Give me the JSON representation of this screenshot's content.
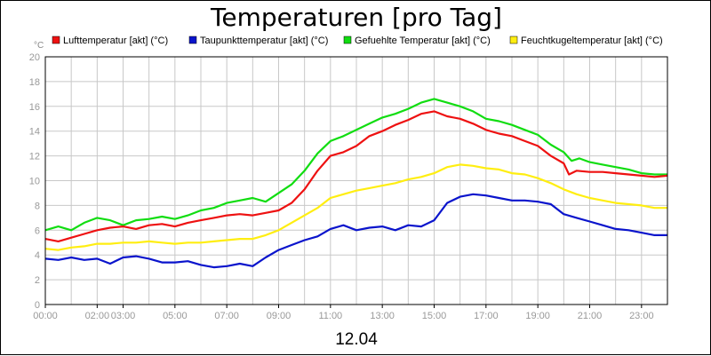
{
  "chart_data": {
    "type": "line",
    "title": "Temperaturen [pro Tag]",
    "xlabel": "12.04",
    "ylabel": "°C",
    "ylim": [
      0,
      20
    ],
    "xlim": [
      0,
      24
    ],
    "yticks": [
      0,
      2,
      4,
      6,
      8,
      10,
      12,
      14,
      16,
      18,
      20
    ],
    "xticks": [
      {
        "x": 0,
        "label": "00:00"
      },
      {
        "x": 2,
        "label": "02:00"
      },
      {
        "x": 3,
        "label": "03:00"
      },
      {
        "x": 5,
        "label": "05:00"
      },
      {
        "x": 7,
        "label": "07:00"
      },
      {
        "x": 9,
        "label": "09:00"
      },
      {
        "x": 11,
        "label": "11:00"
      },
      {
        "x": 13,
        "label": "13:00"
      },
      {
        "x": 15,
        "label": "15:00"
      },
      {
        "x": 17,
        "label": "17:00"
      },
      {
        "x": 19,
        "label": "19:00"
      },
      {
        "x": 21,
        "label": "21:00"
      },
      {
        "x": 23,
        "label": "23:00"
      }
    ],
    "grid": true,
    "legend_position": "top",
    "series": [
      {
        "name": "Lufttemperatur [akt] (°C)",
        "color": "#ee1111",
        "points": [
          [
            0,
            5.3
          ],
          [
            0.5,
            5.1
          ],
          [
            1,
            5.4
          ],
          [
            1.5,
            5.7
          ],
          [
            2,
            6.0
          ],
          [
            2.5,
            6.2
          ],
          [
            3,
            6.3
          ],
          [
            3.5,
            6.1
          ],
          [
            4,
            6.4
          ],
          [
            4.5,
            6.5
          ],
          [
            5,
            6.3
          ],
          [
            5.5,
            6.6
          ],
          [
            6,
            6.8
          ],
          [
            6.5,
            7.0
          ],
          [
            7,
            7.2
          ],
          [
            7.5,
            7.3
          ],
          [
            8,
            7.2
          ],
          [
            8.5,
            7.4
          ],
          [
            9,
            7.6
          ],
          [
            9.5,
            8.2
          ],
          [
            10,
            9.3
          ],
          [
            10.5,
            10.8
          ],
          [
            11,
            12.0
          ],
          [
            11.5,
            12.3
          ],
          [
            12,
            12.8
          ],
          [
            12.5,
            13.6
          ],
          [
            13,
            14.0
          ],
          [
            13.5,
            14.5
          ],
          [
            14,
            14.9
          ],
          [
            14.5,
            15.4
          ],
          [
            15,
            15.6
          ],
          [
            15.5,
            15.2
          ],
          [
            16,
            15.0
          ],
          [
            16.5,
            14.6
          ],
          [
            17,
            14.1
          ],
          [
            17.5,
            13.8
          ],
          [
            18,
            13.6
          ],
          [
            18.5,
            13.2
          ],
          [
            19,
            12.8
          ],
          [
            19.5,
            12.0
          ],
          [
            20,
            11.4
          ],
          [
            20.2,
            10.5
          ],
          [
            20.5,
            10.8
          ],
          [
            21,
            10.7
          ],
          [
            21.5,
            10.7
          ],
          [
            22,
            10.6
          ],
          [
            22.5,
            10.5
          ],
          [
            23,
            10.4
          ],
          [
            23.5,
            10.3
          ],
          [
            24,
            10.4
          ]
        ]
      },
      {
        "name": "Taupunkttemperatur [akt] (°C)",
        "color": "#0a14cc",
        "points": [
          [
            0,
            3.7
          ],
          [
            0.5,
            3.6
          ],
          [
            1,
            3.8
          ],
          [
            1.5,
            3.6
          ],
          [
            2,
            3.7
          ],
          [
            2.5,
            3.3
          ],
          [
            3,
            3.8
          ],
          [
            3.5,
            3.9
          ],
          [
            4,
            3.7
          ],
          [
            4.5,
            3.4
          ],
          [
            5,
            3.4
          ],
          [
            5.5,
            3.5
          ],
          [
            6,
            3.2
          ],
          [
            6.5,
            3.0
          ],
          [
            7,
            3.1
          ],
          [
            7.5,
            3.3
          ],
          [
            8,
            3.1
          ],
          [
            8.5,
            3.8
          ],
          [
            9,
            4.4
          ],
          [
            9.5,
            4.8
          ],
          [
            10,
            5.2
          ],
          [
            10.5,
            5.5
          ],
          [
            11,
            6.1
          ],
          [
            11.5,
            6.4
          ],
          [
            12,
            6.0
          ],
          [
            12.5,
            6.2
          ],
          [
            13,
            6.3
          ],
          [
            13.5,
            6.0
          ],
          [
            14,
            6.4
          ],
          [
            14.5,
            6.3
          ],
          [
            15,
            6.8
          ],
          [
            15.5,
            8.2
          ],
          [
            16,
            8.7
          ],
          [
            16.5,
            8.9
          ],
          [
            17,
            8.8
          ],
          [
            17.5,
            8.6
          ],
          [
            18,
            8.4
          ],
          [
            18.5,
            8.4
          ],
          [
            19,
            8.3
          ],
          [
            19.5,
            8.1
          ],
          [
            20,
            7.3
          ],
          [
            20.5,
            7.0
          ],
          [
            21,
            6.7
          ],
          [
            21.5,
            6.4
          ],
          [
            22,
            6.1
          ],
          [
            22.5,
            6.0
          ],
          [
            23,
            5.8
          ],
          [
            23.5,
            5.6
          ],
          [
            24,
            5.6
          ]
        ]
      },
      {
        "name": "Gefuehlte Temperatur [akt] (°C)",
        "color": "#11dd11",
        "points": [
          [
            0,
            6.0
          ],
          [
            0.5,
            6.3
          ],
          [
            1,
            6.0
          ],
          [
            1.5,
            6.6
          ],
          [
            2,
            7.0
          ],
          [
            2.5,
            6.8
          ],
          [
            3,
            6.4
          ],
          [
            3.5,
            6.8
          ],
          [
            4,
            6.9
          ],
          [
            4.5,
            7.1
          ],
          [
            5,
            6.9
          ],
          [
            5.5,
            7.2
          ],
          [
            6,
            7.6
          ],
          [
            6.5,
            7.8
          ],
          [
            7,
            8.2
          ],
          [
            7.5,
            8.4
          ],
          [
            8,
            8.6
          ],
          [
            8.5,
            8.3
          ],
          [
            9,
            9.0
          ],
          [
            9.5,
            9.7
          ],
          [
            10,
            10.8
          ],
          [
            10.5,
            12.2
          ],
          [
            11,
            13.2
          ],
          [
            11.5,
            13.6
          ],
          [
            12,
            14.1
          ],
          [
            12.5,
            14.6
          ],
          [
            13,
            15.1
          ],
          [
            13.5,
            15.4
          ],
          [
            14,
            15.8
          ],
          [
            14.5,
            16.3
          ],
          [
            15,
            16.6
          ],
          [
            15.5,
            16.3
          ],
          [
            16,
            16.0
          ],
          [
            16.5,
            15.6
          ],
          [
            17,
            15.0
          ],
          [
            17.5,
            14.8
          ],
          [
            18,
            14.5
          ],
          [
            18.5,
            14.1
          ],
          [
            19,
            13.7
          ],
          [
            19.5,
            12.9
          ],
          [
            20,
            12.3
          ],
          [
            20.3,
            11.6
          ],
          [
            20.6,
            11.8
          ],
          [
            21,
            11.5
          ],
          [
            21.5,
            11.3
          ],
          [
            22,
            11.1
          ],
          [
            22.5,
            10.9
          ],
          [
            23,
            10.6
          ],
          [
            23.5,
            10.5
          ],
          [
            24,
            10.5
          ]
        ]
      },
      {
        "name": "Feuchtkugeltemperatur [akt] (°C)",
        "color": "#ffee11",
        "points": [
          [
            0,
            4.5
          ],
          [
            0.5,
            4.4
          ],
          [
            1,
            4.6
          ],
          [
            1.5,
            4.7
          ],
          [
            2,
            4.9
          ],
          [
            2.5,
            4.9
          ],
          [
            3,
            5.0
          ],
          [
            3.5,
            5.0
          ],
          [
            4,
            5.1
          ],
          [
            4.5,
            5.0
          ],
          [
            5,
            4.9
          ],
          [
            5.5,
            5.0
          ],
          [
            6,
            5.0
          ],
          [
            6.5,
            5.1
          ],
          [
            7,
            5.2
          ],
          [
            7.5,
            5.3
          ],
          [
            8,
            5.3
          ],
          [
            8.5,
            5.6
          ],
          [
            9,
            6.0
          ],
          [
            9.5,
            6.6
          ],
          [
            10,
            7.2
          ],
          [
            10.5,
            7.8
          ],
          [
            11,
            8.6
          ],
          [
            11.5,
            8.9
          ],
          [
            12,
            9.2
          ],
          [
            12.5,
            9.4
          ],
          [
            13,
            9.6
          ],
          [
            13.5,
            9.8
          ],
          [
            14,
            10.1
          ],
          [
            14.5,
            10.3
          ],
          [
            15,
            10.6
          ],
          [
            15.5,
            11.1
          ],
          [
            16,
            11.3
          ],
          [
            16.5,
            11.2
          ],
          [
            17,
            11.0
          ],
          [
            17.5,
            10.9
          ],
          [
            18,
            10.6
          ],
          [
            18.5,
            10.5
          ],
          [
            19,
            10.2
          ],
          [
            19.5,
            9.8
          ],
          [
            20,
            9.3
          ],
          [
            20.5,
            8.9
          ],
          [
            21,
            8.6
          ],
          [
            21.5,
            8.4
          ],
          [
            22,
            8.2
          ],
          [
            22.5,
            8.1
          ],
          [
            23,
            8.0
          ],
          [
            23.5,
            7.8
          ],
          [
            24,
            7.8
          ]
        ]
      }
    ]
  }
}
